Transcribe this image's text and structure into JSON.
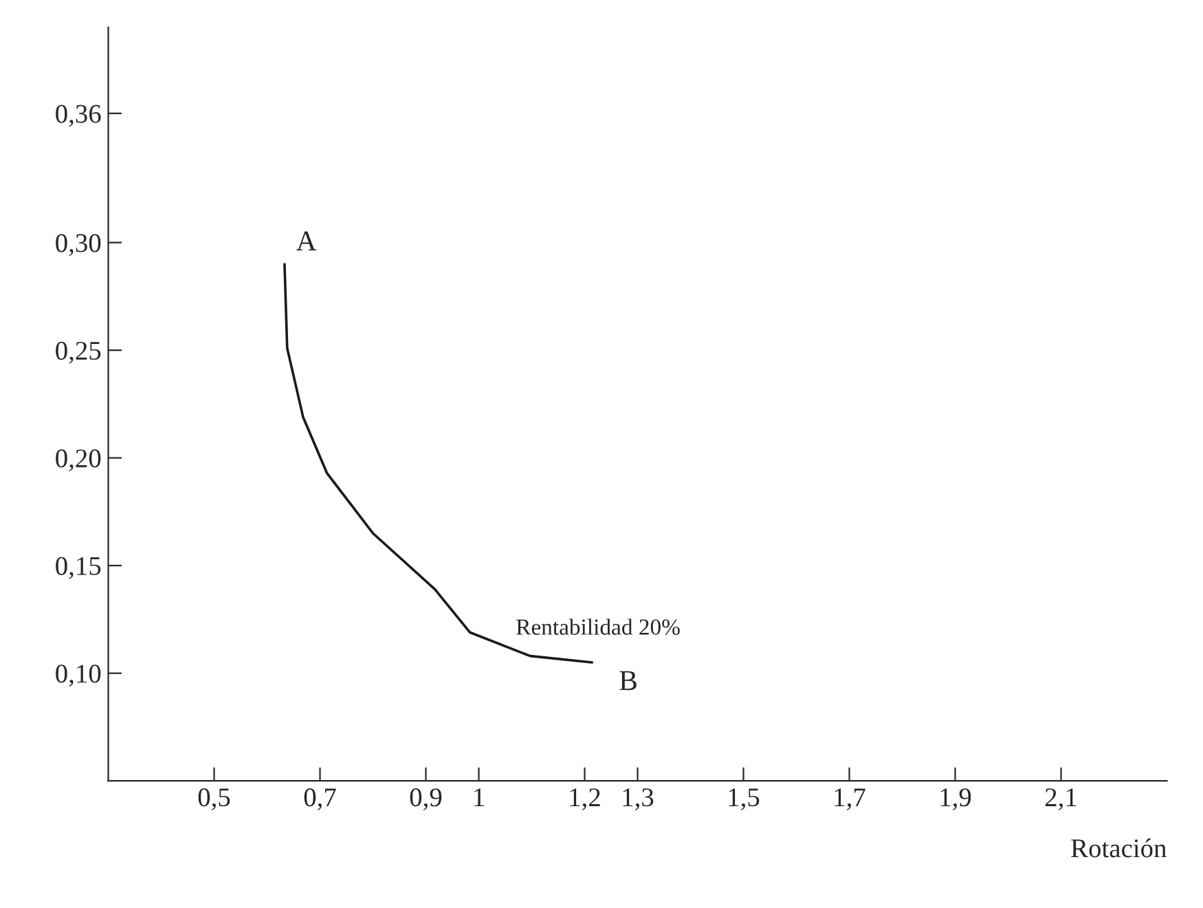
{
  "chart_data": {
    "type": "line",
    "xlabel": "Rotación",
    "series": [
      {
        "name": "Rentabilidad 20%",
        "color": "#1a1a1a",
        "x": [
          0.633,
          0.638,
          0.668,
          0.713,
          0.8,
          0.917,
          0.983,
          1.097,
          1.214
        ],
        "values": [
          0.29,
          0.251,
          0.219,
          0.193,
          0.165,
          0.139,
          0.119,
          0.108,
          0.105
        ]
      }
    ],
    "annotations": [
      {
        "text": "A",
        "x": 0.633,
        "y": 0.29
      },
      {
        "text": "B",
        "x": 1.214,
        "y": 0.105
      }
    ],
    "xlim": [
      0.3,
      2.3
    ],
    "ylim": [
      0.05,
      0.4
    ],
    "xticks": [
      {
        "value": 0.5,
        "label": "0,5"
      },
      {
        "value": 0.7,
        "label": "0,7"
      },
      {
        "value": 0.9,
        "label": "0,9"
      },
      1,
      {
        "value": 1.2,
        "label": "1,2"
      },
      {
        "value": 1.3,
        "label": "1,3"
      },
      {
        "value": 1.5,
        "label": "1,5"
      },
      {
        "value": 1.7,
        "label": "1,7"
      },
      {
        "value": 1.9,
        "label": "1,9"
      },
      {
        "value": 2.1,
        "label": "2,1"
      }
    ],
    "yticks": [
      {
        "value": 0.1,
        "label": "0,10"
      },
      {
        "value": 0.15,
        "label": "0,15"
      },
      {
        "value": 0.2,
        "label": "0,20"
      },
      {
        "value": 0.25,
        "label": "0,25"
      },
      {
        "value": 0.3,
        "label": "0,30"
      },
      {
        "value": 0.36,
        "label": "0,36"
      }
    ],
    "grid": false,
    "legend": false,
    "marker": "none",
    "line_style": "solid"
  }
}
